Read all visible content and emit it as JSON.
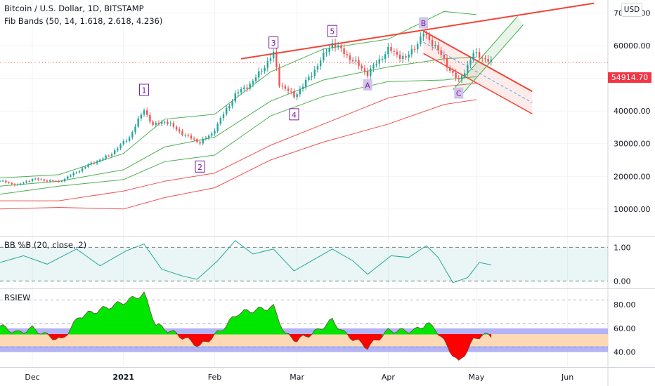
{
  "header": {
    "title": "Bitcoin / U.S. Dollar, 1D, BITSTAMP",
    "indicator": "Fib Bands (50, 14, 1.618, 2.618, 4.236)",
    "currency_button": "USD",
    "last_price": "54914.70"
  },
  "colors": {
    "up": "#26a69a",
    "down": "#ef5350",
    "band_green": "#4caf50",
    "band_red": "#ef5350",
    "trend": "#f44336",
    "pb_line": "#26a69a",
    "rsi_green": "#00e600",
    "rsi_red": "#ff0000"
  },
  "chart_data": [
    {
      "type": "candlestick",
      "title": "Bitcoin / U.S. Dollar, 1D, BITSTAMP",
      "x_ticks": [
        "Dec",
        "2021",
        "Feb",
        "Mar",
        "Apr",
        "May",
        "Jun"
      ],
      "y_ticks": [
        "70000.00",
        "60000.00",
        "50000.00",
        "40000.00",
        "30000.00",
        "20000.00",
        "10000.00"
      ],
      "ylim": [
        2000,
        74000
      ],
      "last_price": 54914.7,
      "close_path": [
        {
          "x": "2020-11-20",
          "y": 18600
        },
        {
          "x": "2020-11-26",
          "y": 17300
        },
        {
          "x": "2020-12-01",
          "y": 19200
        },
        {
          "x": "2020-12-10",
          "y": 18300
        },
        {
          "x": "2020-12-16",
          "y": 21300
        },
        {
          "x": "2020-12-20",
          "y": 23500
        },
        {
          "x": "2020-12-27",
          "y": 26300
        },
        {
          "x": "2021-01-03",
          "y": 32000
        },
        {
          "x": "2021-01-08",
          "y": 40500
        },
        {
          "x": "2021-01-11",
          "y": 35500
        },
        {
          "x": "2021-01-15",
          "y": 37000
        },
        {
          "x": "2021-01-22",
          "y": 32500
        },
        {
          "x": "2021-01-27",
          "y": 30400
        },
        {
          "x": "2021-01-31",
          "y": 33000
        },
        {
          "x": "2021-02-08",
          "y": 45000
        },
        {
          "x": "2021-02-14",
          "y": 49000
        },
        {
          "x": "2021-02-21",
          "y": 57500
        },
        {
          "x": "2021-02-23",
          "y": 48500
        },
        {
          "x": "2021-02-28",
          "y": 44500
        },
        {
          "x": "2021-03-05",
          "y": 50000
        },
        {
          "x": "2021-03-13",
          "y": 61000
        },
        {
          "x": "2021-03-18",
          "y": 57000
        },
        {
          "x": "2021-03-25",
          "y": 51500
        },
        {
          "x": "2021-04-01",
          "y": 58800
        },
        {
          "x": "2021-04-07",
          "y": 56000
        },
        {
          "x": "2021-04-13",
          "y": 63500
        },
        {
          "x": "2021-04-17",
          "y": 60000
        },
        {
          "x": "2021-04-21",
          "y": 54000
        },
        {
          "x": "2021-04-25",
          "y": 49000
        },
        {
          "x": "2021-04-30",
          "y": 57500
        },
        {
          "x": "2021-05-03",
          "y": 56500
        },
        {
          "x": "2021-05-06",
          "y": 54900
        }
      ],
      "series": [
        {
          "name": "Fib Band upper (green)",
          "values": [
            {
              "x": "2020-11-20",
              "y": 19500
            },
            {
              "x": "2020-12-10",
              "y": 20500
            },
            {
              "x": "2021-01-01",
              "y": 27000
            },
            {
              "x": "2021-01-15",
              "y": 37500
            },
            {
              "x": "2021-02-01",
              "y": 39000
            },
            {
              "x": "2021-02-20",
              "y": 52000
            },
            {
              "x": "2021-03-10",
              "y": 59000
            },
            {
              "x": "2021-04-01",
              "y": 62000
            },
            {
              "x": "2021-04-20",
              "y": 70500
            },
            {
              "x": "2021-05-01",
              "y": 69500
            }
          ]
        },
        {
          "name": "Fib Band basis (green)",
          "values": [
            {
              "x": "2020-11-20",
              "y": 17000
            },
            {
              "x": "2020-12-10",
              "y": 18500
            },
            {
              "x": "2021-01-01",
              "y": 22000
            },
            {
              "x": "2021-01-15",
              "y": 29000
            },
            {
              "x": "2021-02-01",
              "y": 32000
            },
            {
              "x": "2021-02-20",
              "y": 43000
            },
            {
              "x": "2021-03-10",
              "y": 49500
            },
            {
              "x": "2021-04-01",
              "y": 53500
            },
            {
              "x": "2021-04-20",
              "y": 56000
            },
            {
              "x": "2021-05-01",
              "y": 56500
            }
          ]
        },
        {
          "name": "Fib Band lower (green)",
          "values": [
            {
              "x": "2020-11-20",
              "y": 14500
            },
            {
              "x": "2020-12-10",
              "y": 17000
            },
            {
              "x": "2021-01-01",
              "y": 19000
            },
            {
              "x": "2021-01-15",
              "y": 24500
            },
            {
              "x": "2021-02-01",
              "y": 26500
            },
            {
              "x": "2021-02-20",
              "y": 38500
            },
            {
              "x": "2021-03-10",
              "y": 44500
            },
            {
              "x": "2021-04-01",
              "y": 49000
            },
            {
              "x": "2021-04-20",
              "y": 49500
            },
            {
              "x": "2021-05-01",
              "y": 50500
            }
          ]
        },
        {
          "name": "Fib Band upper (red)",
          "values": [
            {
              "x": "2020-11-20",
              "y": 12500
            },
            {
              "x": "2020-12-10",
              "y": 12500
            },
            {
              "x": "2021-01-01",
              "y": 15500
            },
            {
              "x": "2021-01-15",
              "y": 18500
            },
            {
              "x": "2021-02-01",
              "y": 21000
            },
            {
              "x": "2021-02-20",
              "y": 29500
            },
            {
              "x": "2021-03-10",
              "y": 36000
            },
            {
              "x": "2021-04-01",
              "y": 44000
            },
            {
              "x": "2021-04-20",
              "y": 47500
            },
            {
              "x": "2021-05-01",
              "y": 48500
            }
          ]
        },
        {
          "name": "Fib Band lower (red)",
          "values": [
            {
              "x": "2020-11-20",
              "y": 10000
            },
            {
              "x": "2020-12-10",
              "y": 10500
            },
            {
              "x": "2021-01-01",
              "y": 10000
            },
            {
              "x": "2021-01-15",
              "y": 13500
            },
            {
              "x": "2021-02-01",
              "y": 16500
            },
            {
              "x": "2021-02-20",
              "y": 25000
            },
            {
              "x": "2021-03-10",
              "y": 30500
            },
            {
              "x": "2021-04-01",
              "y": 36000
            },
            {
              "x": "2021-04-20",
              "y": 42000
            },
            {
              "x": "2021-05-01",
              "y": 43500
            }
          ]
        }
      ],
      "annotations": [
        {
          "text": "1",
          "x": "2021-01-08",
          "y": 46500
        },
        {
          "text": "2",
          "x": "2021-01-27",
          "y": 23000
        },
        {
          "text": "3",
          "x": "2021-02-21",
          "y": 61000
        },
        {
          "text": "4",
          "x": "2021-02-28",
          "y": 39000
        },
        {
          "text": "5",
          "x": "2021-03-13",
          "y": 64500
        },
        {
          "text": "A",
          "x": "2021-03-25",
          "y": 48000
        },
        {
          "text": "B",
          "x": "2021-04-13",
          "y": 67000
        },
        {
          "text": "C",
          "x": "2021-04-25",
          "y": 45500
        }
      ],
      "trendlines": [
        {
          "from": {
            "x": "2021-02-10",
            "y": 56000
          },
          "to": {
            "x": "2021-06-10",
            "y": 73000
          }
        },
        {
          "from": {
            "x": "2021-04-13",
            "y": 64500
          },
          "to": {
            "x": "2021-05-20",
            "y": 46000
          }
        }
      ]
    },
    {
      "type": "line",
      "title": "BB %B (20, close, 2)",
      "y_ticks": [
        "1.00",
        "0.00"
      ],
      "ylim": [
        -0.2,
        1.3
      ],
      "values": [
        {
          "x": "2020-11-20",
          "y": 0.55
        },
        {
          "x": "2020-11-28",
          "y": 0.75
        },
        {
          "x": "2020-12-06",
          "y": 0.5
        },
        {
          "x": "2020-12-16",
          "y": 0.95
        },
        {
          "x": "2020-12-24",
          "y": 0.45
        },
        {
          "x": "2021-01-02",
          "y": 0.9
        },
        {
          "x": "2021-01-08",
          "y": 1.1
        },
        {
          "x": "2021-01-14",
          "y": 0.35
        },
        {
          "x": "2021-01-21",
          "y": 0.15
        },
        {
          "x": "2021-01-26",
          "y": 0.05
        },
        {
          "x": "2021-02-02",
          "y": 0.6
        },
        {
          "x": "2021-02-08",
          "y": 1.2
        },
        {
          "x": "2021-02-14",
          "y": 0.8
        },
        {
          "x": "2021-02-21",
          "y": 0.95
        },
        {
          "x": "2021-02-28",
          "y": 0.3
        },
        {
          "x": "2021-03-06",
          "y": 0.6
        },
        {
          "x": "2021-03-13",
          "y": 0.95
        },
        {
          "x": "2021-03-20",
          "y": 0.6
        },
        {
          "x": "2021-03-25",
          "y": 0.2
        },
        {
          "x": "2021-04-02",
          "y": 0.75
        },
        {
          "x": "2021-04-08",
          "y": 0.7
        },
        {
          "x": "2021-04-14",
          "y": 1.05
        },
        {
          "x": "2021-04-18",
          "y": 0.7
        },
        {
          "x": "2021-04-23",
          "y": -0.05
        },
        {
          "x": "2021-04-28",
          "y": 0.1
        },
        {
          "x": "2021-05-02",
          "y": 0.55
        },
        {
          "x": "2021-05-06",
          "y": 0.48
        }
      ]
    },
    {
      "type": "area",
      "title": "RSIEW",
      "y_ticks": [
        "80.00",
        "60.00",
        "40.00"
      ],
      "ylim": [
        28,
        93
      ],
      "bands": [
        60,
        55,
        45,
        40
      ],
      "values": [
        {
          "x": "2020-11-20",
          "y": 62
        },
        {
          "x": "2020-11-26",
          "y": 56
        },
        {
          "x": "2020-12-01",
          "y": 60
        },
        {
          "x": "2020-12-06",
          "y": 54
        },
        {
          "x": "2020-12-11",
          "y": 50
        },
        {
          "x": "2020-12-17",
          "y": 70
        },
        {
          "x": "2021-01-01",
          "y": 82
        },
        {
          "x": "2021-01-08",
          "y": 89
        },
        {
          "x": "2021-01-12",
          "y": 63
        },
        {
          "x": "2021-01-20",
          "y": 54
        },
        {
          "x": "2021-01-27",
          "y": 45
        },
        {
          "x": "2021-02-03",
          "y": 58
        },
        {
          "x": "2021-02-09",
          "y": 73
        },
        {
          "x": "2021-02-21",
          "y": 78
        },
        {
          "x": "2021-02-25",
          "y": 55
        },
        {
          "x": "2021-03-01",
          "y": 50
        },
        {
          "x": "2021-03-08",
          "y": 58
        },
        {
          "x": "2021-03-13",
          "y": 67
        },
        {
          "x": "2021-03-17",
          "y": 56
        },
        {
          "x": "2021-03-25",
          "y": 44
        },
        {
          "x": "2021-04-01",
          "y": 58
        },
        {
          "x": "2021-04-10",
          "y": 58
        },
        {
          "x": "2021-04-14",
          "y": 64
        },
        {
          "x": "2021-04-17",
          "y": 60
        },
        {
          "x": "2021-04-21",
          "y": 45
        },
        {
          "x": "2021-04-25",
          "y": 31
        },
        {
          "x": "2021-04-30",
          "y": 50
        },
        {
          "x": "2021-05-03",
          "y": 55
        },
        {
          "x": "2021-05-06",
          "y": 53
        }
      ]
    }
  ]
}
